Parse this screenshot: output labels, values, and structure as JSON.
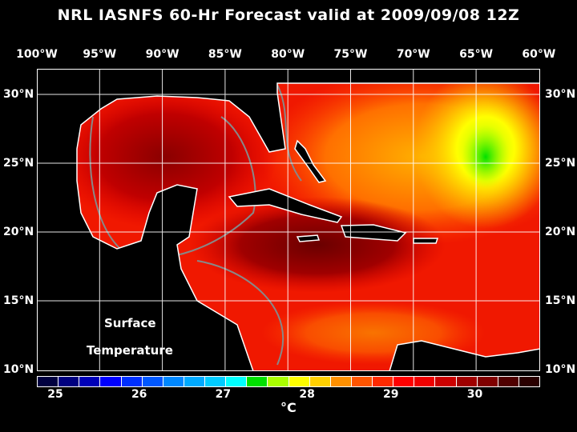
{
  "title": "NRL IASNFS  60-Hr Forecast valid at 2009/09/08 12Z",
  "lon_labels": [
    "100°W",
    "95°W",
    "90°W",
    "85°W",
    "80°W",
    "75°W",
    "70°W",
    "65°W",
    "60°W"
  ],
  "lat_labels_left": [
    "30°N",
    "25°N",
    "20°N",
    "15°N",
    "10°N"
  ],
  "lat_labels_right": [
    "30°N",
    "25°N",
    "20°N",
    "15°N",
    "10°N"
  ],
  "annotation": {
    "line1": "Surface",
    "line2": "Temperature"
  },
  "colorbar": {
    "labels": [
      "25",
      "26",
      "27",
      "28",
      "29",
      "30"
    ],
    "unit": "°C",
    "colors": [
      "#000040",
      "#000080",
      "#0000b8",
      "#0000ff",
      "#0030ff",
      "#0058ff",
      "#0088ff",
      "#00aaff",
      "#00ccff",
      "#00ffff",
      "#00e000",
      "#aaff00",
      "#ffff00",
      "#ffd000",
      "#ff9000",
      "#ff5500",
      "#ff2a00",
      "#ff0000",
      "#f00000",
      "#cc0000",
      "#a00000",
      "#800000",
      "#500000",
      "#2a0000"
    ]
  }
}
